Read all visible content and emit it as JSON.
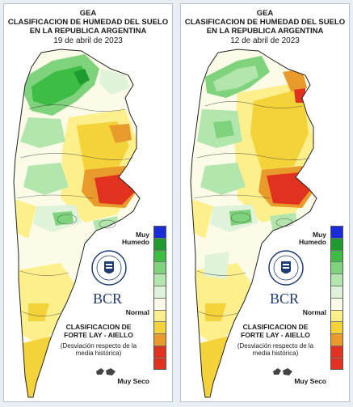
{
  "maps": [
    {
      "id": "left",
      "org": "GEA",
      "title_line1": "CLASIFICACION DE HUMEDAD DEL SUELO",
      "title_line2": "EN LA REPUBLICA ARGENTINA",
      "date": "19 de abril de 2023"
    },
    {
      "id": "right",
      "org": "GEA",
      "title_line1": "CLASIFICACION DE HUMEDAD DEL SUELO",
      "title_line2": "EN LA REPUBLICA ARGENTINA",
      "date": "12 de abril de 2023"
    }
  ],
  "legend": {
    "top_label": "Muy Humedo",
    "mid_label": "Normal",
    "bottom_label": "Muy Seco",
    "classification": "CLASIFICACION DE FORTE LAY - AIELLO",
    "description": "(Desviación respecto de la media histórica)",
    "logo_text": "BCR",
    "seal_text": "BOLSA DE COMERCIO DE ROSARIO",
    "colors": [
      "#1c2bd8",
      "#1f9a2e",
      "#3ebd45",
      "#7fd37c",
      "#b3e6ad",
      "#dff3da",
      "#fbfbe8",
      "#fdf08c",
      "#f3d23a",
      "#e89a2a",
      "#e0321e"
    ]
  }
}
